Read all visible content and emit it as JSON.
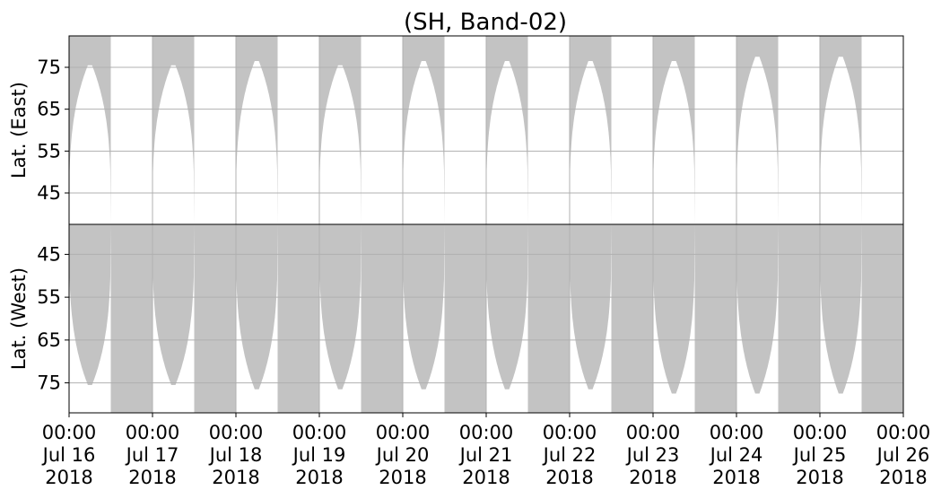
{
  "title": "(SH, Band-02)",
  "chart_data": [
    {
      "type": "area",
      "panel": "east",
      "ylabel": "Lat. (East)",
      "yticks": [
        "45",
        "55",
        "65",
        "75"
      ],
      "ylim": [
        37.5,
        82.5
      ],
      "y_inverted": false,
      "fill_color": "#c3c3c3",
      "grid": true,
      "coverage_bands": [
        {
          "start": "2018-07-16 00:00",
          "end": "2018-07-16 12:00",
          "apex_lat": 75.5
        },
        {
          "start": "2018-07-17 00:00",
          "end": "2018-07-17 12:00",
          "apex_lat": 75.5
        },
        {
          "start": "2018-07-18 00:00",
          "end": "2018-07-18 12:00",
          "apex_lat": 76.5
        },
        {
          "start": "2018-07-19 00:00",
          "end": "2018-07-19 12:00",
          "apex_lat": 75.5
        },
        {
          "start": "2018-07-20 00:00",
          "end": "2018-07-20 12:00",
          "apex_lat": 76.5
        },
        {
          "start": "2018-07-21 00:00",
          "end": "2018-07-21 12:00",
          "apex_lat": 76.5
        },
        {
          "start": "2018-07-22 00:00",
          "end": "2018-07-22 12:00",
          "apex_lat": 76.5
        },
        {
          "start": "2018-07-23 00:00",
          "end": "2018-07-23 12:00",
          "apex_lat": 76.5
        },
        {
          "start": "2018-07-24 00:00",
          "end": "2018-07-24 12:00",
          "apex_lat": 77.5
        },
        {
          "start": "2018-07-25 00:00",
          "end": "2018-07-25 12:00",
          "apex_lat": 77.5
        }
      ]
    },
    {
      "type": "area",
      "panel": "west",
      "ylabel": "Lat. (West)",
      "yticks": [
        "45",
        "55",
        "65",
        "75"
      ],
      "ylim": [
        38,
        82
      ],
      "y_inverted": true,
      "fill_color": "#c3c3c3",
      "grid": true,
      "coverage_gaps": [
        {
          "start": "2018-07-16 00:00",
          "end": "2018-07-16 12:00",
          "apex_lat": 75.5
        },
        {
          "start": "2018-07-17 00:00",
          "end": "2018-07-17 12:00",
          "apex_lat": 75.5
        },
        {
          "start": "2018-07-18 00:00",
          "end": "2018-07-18 12:00",
          "apex_lat": 76.5
        },
        {
          "start": "2018-07-19 00:00",
          "end": "2018-07-19 12:00",
          "apex_lat": 76.5
        },
        {
          "start": "2018-07-20 00:00",
          "end": "2018-07-20 12:00",
          "apex_lat": 76.5
        },
        {
          "start": "2018-07-21 00:00",
          "end": "2018-07-21 12:00",
          "apex_lat": 76.5
        },
        {
          "start": "2018-07-22 00:00",
          "end": "2018-07-22 12:00",
          "apex_lat": 76.5
        },
        {
          "start": "2018-07-23 00:00",
          "end": "2018-07-23 12:00",
          "apex_lat": 77.5
        },
        {
          "start": "2018-07-24 00:00",
          "end": "2018-07-24 12:00",
          "apex_lat": 77.5
        },
        {
          "start": "2018-07-25 00:00",
          "end": "2018-07-25 12:00",
          "apex_lat": 77.5
        }
      ]
    }
  ],
  "x_axis": {
    "start": "2018-07-16 00:00",
    "end": "2018-07-26 00:00",
    "ticks": [
      {
        "time": "00:00",
        "date": "Jul 16",
        "year": "2018"
      },
      {
        "time": "00:00",
        "date": "Jul 17",
        "year": "2018"
      },
      {
        "time": "00:00",
        "date": "Jul 18",
        "year": "2018"
      },
      {
        "time": "00:00",
        "date": "Jul 19",
        "year": "2018"
      },
      {
        "time": "00:00",
        "date": "Jul 20",
        "year": "2018"
      },
      {
        "time": "00:00",
        "date": "Jul 21",
        "year": "2018"
      },
      {
        "time": "00:00",
        "date": "Jul 22",
        "year": "2018"
      },
      {
        "time": "00:00",
        "date": "Jul 23",
        "year": "2018"
      },
      {
        "time": "00:00",
        "date": "Jul 24",
        "year": "2018"
      },
      {
        "time": "00:00",
        "date": "Jul 25",
        "year": "2018"
      },
      {
        "time": "00:00",
        "date": "Jul 26",
        "year": "2018"
      }
    ]
  }
}
